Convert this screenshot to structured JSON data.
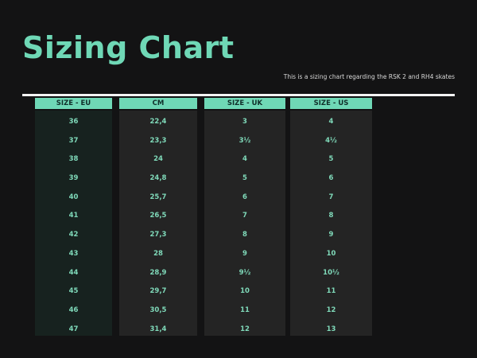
{
  "title": "Sizing Chart",
  "subtitle": "This is a sizing chart regarding the RSK 2 and RH4 skates",
  "colors": {
    "background": "#131314",
    "accent": "#6fd8b6",
    "rule": "#f4f4f4"
  },
  "table": {
    "columns": [
      {
        "header": "SIZE - EU",
        "values": [
          "36",
          "37",
          "38",
          "39",
          "40",
          "41",
          "42",
          "43",
          "44",
          "45",
          "46",
          "47"
        ]
      },
      {
        "header": "CM",
        "values": [
          "22,4",
          "23,3",
          "24",
          "24,8",
          "25,7",
          "26,5",
          "27,3",
          "28",
          "28,9",
          "29,7",
          "30,5",
          "31,4"
        ]
      },
      {
        "header": "SIZE - UK",
        "values": [
          "3",
          "3½",
          "4",
          "5",
          "6",
          "7",
          "8",
          "9",
          "9½",
          "10",
          "11",
          "12"
        ]
      },
      {
        "header": "SIZE - US",
        "values": [
          "4",
          "4½",
          "5",
          "6",
          "7",
          "8",
          "9",
          "10",
          "10½",
          "11",
          "12",
          "13"
        ]
      }
    ]
  }
}
